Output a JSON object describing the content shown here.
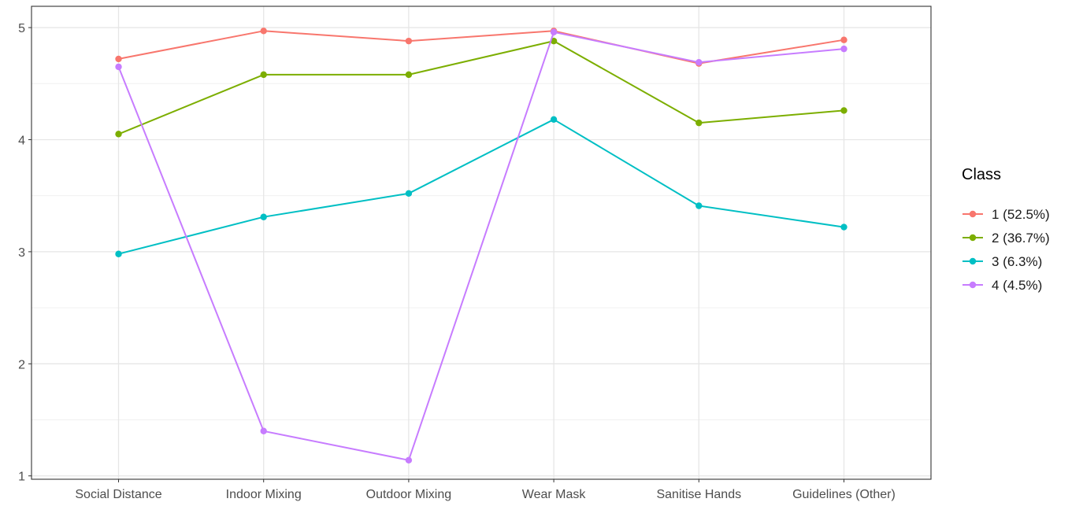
{
  "chart_data": {
    "type": "line",
    "categories": [
      "Social Distance",
      "Indoor Mixing",
      "Outdoor Mixing",
      "Wear Mask",
      "Sanitise Hands",
      "Guidelines (Other)"
    ],
    "yticks": [
      "1",
      "2",
      "3",
      "4",
      "5"
    ],
    "ylim": [
      0.97,
      5.19
    ],
    "grid": true,
    "legend_position": "right",
    "legend_title": "Class",
    "series": [
      {
        "name": "1 (52.5%)",
        "color": "#F8766D",
        "values": [
          4.72,
          4.97,
          4.88,
          4.97,
          4.68,
          4.89
        ]
      },
      {
        "name": "2 (36.7%)",
        "color": "#7CAE00",
        "values": [
          4.05,
          4.58,
          4.58,
          4.88,
          4.15,
          4.26
        ]
      },
      {
        "name": "3 (6.3%)",
        "color": "#00BFC4",
        "values": [
          2.98,
          3.31,
          3.52,
          4.18,
          3.41,
          3.22
        ]
      },
      {
        "name": "4 (4.5%)",
        "color": "#C77CFF",
        "values": [
          4.65,
          1.4,
          1.14,
          4.96,
          4.69,
          4.81
        ]
      }
    ]
  }
}
